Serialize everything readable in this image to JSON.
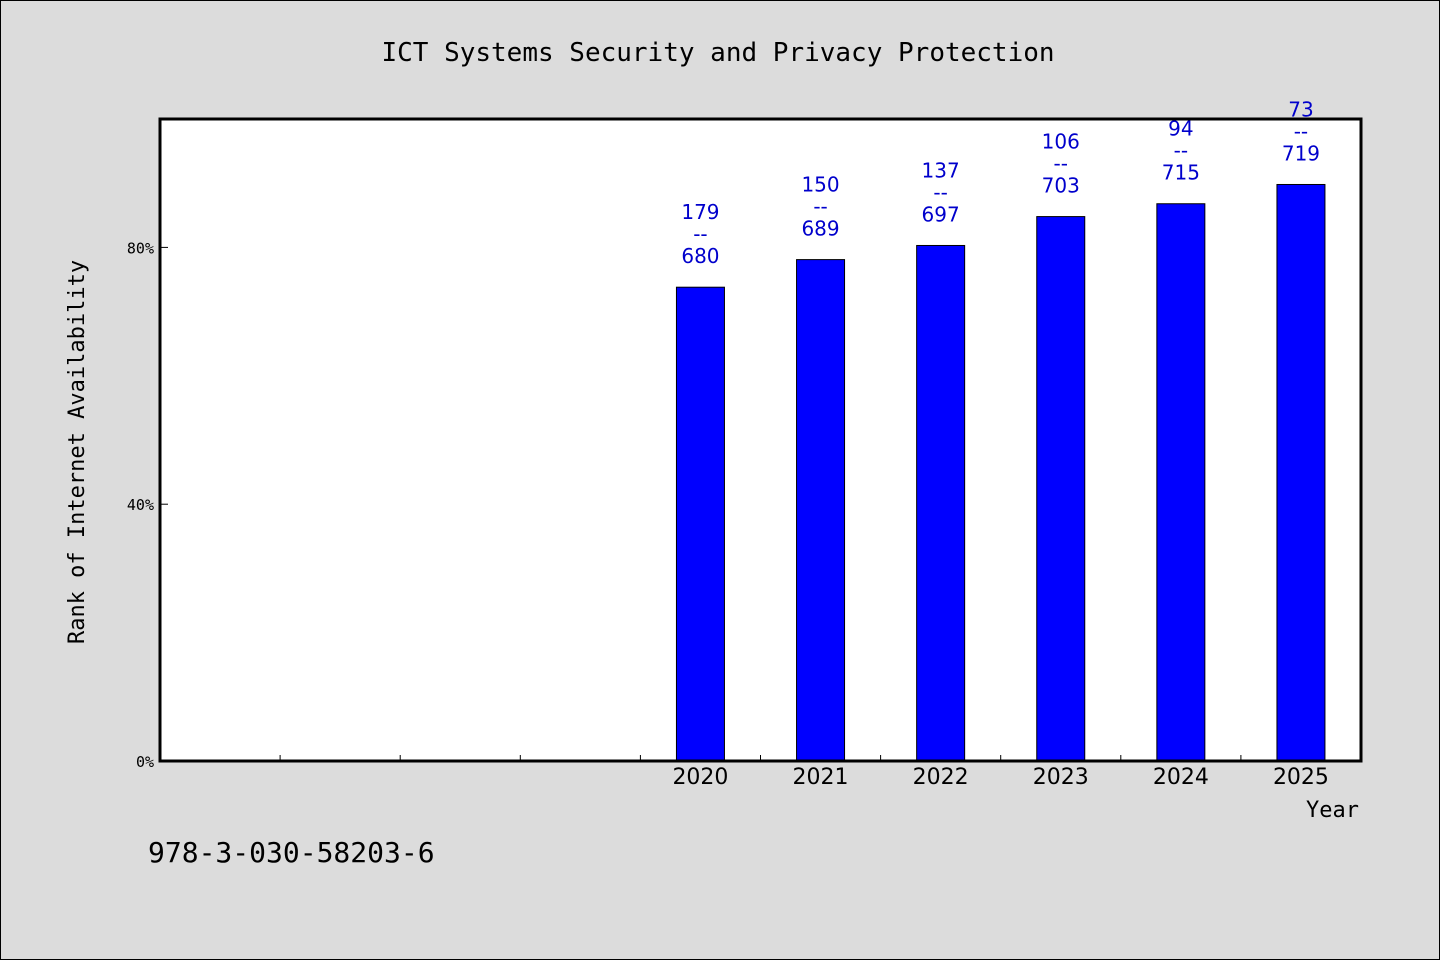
{
  "chart_data": {
    "type": "bar",
    "title": "ICT Systems Security and Privacy Protection",
    "xlabel": "Year",
    "ylabel": "Rank of Internet Availability",
    "categories": [
      "2020",
      "2021",
      "2022",
      "2023",
      "2024",
      "2025"
    ],
    "values": [
      73.8,
      78.1,
      80.3,
      84.8,
      86.8,
      89.8
    ],
    "data_labels": [
      {
        "top": "179",
        "sep": "--",
        "bottom": "680"
      },
      {
        "top": "150",
        "sep": "--",
        "bottom": "689"
      },
      {
        "top": "137",
        "sep": "--",
        "bottom": "697"
      },
      {
        "top": "106",
        "sep": "--",
        "bottom": "703"
      },
      {
        "top": "94",
        "sep": "--",
        "bottom": "715"
      },
      {
        "top": "73",
        "sep": "--",
        "bottom": "719"
      }
    ],
    "ylim": [
      0,
      100
    ],
    "y_ticks": [
      {
        "value": 0,
        "label": "0%"
      },
      {
        "value": 40,
        "label": "40%"
      },
      {
        "value": 80,
        "label": "80%"
      }
    ],
    "x_slots": 10,
    "category_start_slot": 4,
    "grid": false,
    "bar_color": "#0000ff",
    "label_color": "#0000cc"
  },
  "footer": {
    "isbn": "978-3-030-58203-6"
  }
}
